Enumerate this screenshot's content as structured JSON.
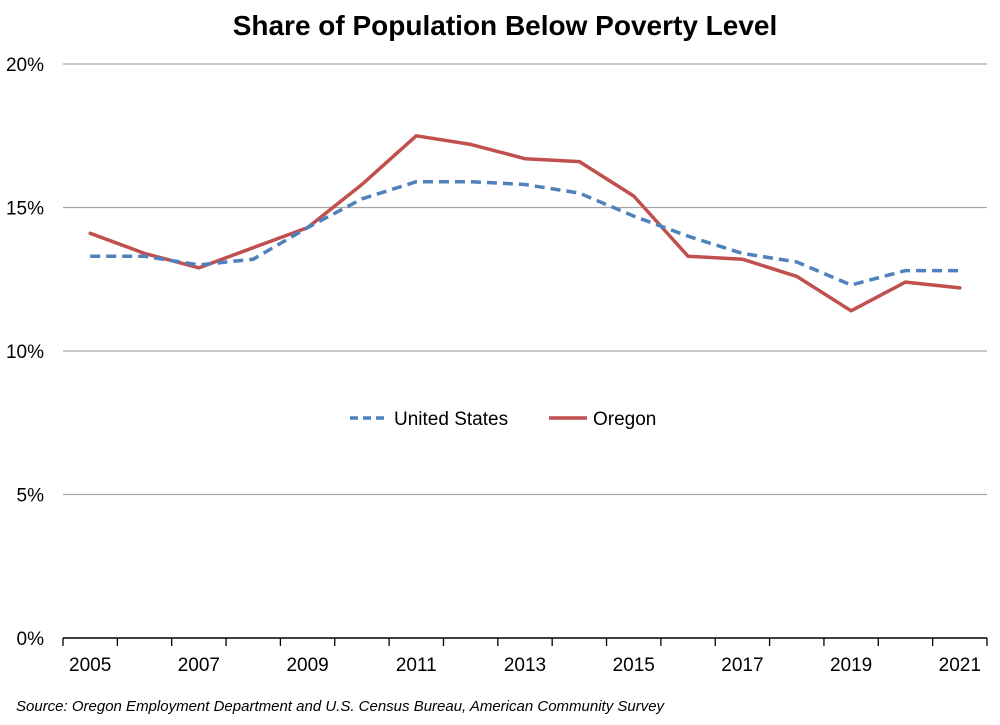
{
  "chart_data": {
    "type": "line",
    "title": "Share of Population Below Poverty Level",
    "xlabel": "",
    "ylabel": "",
    "x": [
      2005,
      2006,
      2007,
      2008,
      2009,
      2010,
      2011,
      2012,
      2013,
      2014,
      2015,
      2016,
      2017,
      2018,
      2019,
      2020,
      2021
    ],
    "x_tick_labels": [
      "2005",
      "2007",
      "2009",
      "2011",
      "2013",
      "2015",
      "2017",
      "2019",
      "2021"
    ],
    "y_tick_labels": [
      "0%",
      "5%",
      "10%",
      "15%",
      "20%"
    ],
    "y_ticks": [
      0,
      5,
      10,
      15,
      20
    ],
    "ylim": [
      0,
      20
    ],
    "grid": true,
    "legend_position": "center",
    "series": [
      {
        "name": "United States",
        "style": "dashed",
        "color": "#4f81bd",
        "values": [
          13.3,
          13.3,
          13.0,
          13.2,
          14.3,
          15.3,
          15.9,
          15.9,
          15.8,
          15.5,
          14.7,
          14.0,
          13.4,
          13.1,
          12.3,
          12.8,
          12.8
        ]
      },
      {
        "name": "Oregon",
        "style": "solid",
        "color": "#c0504d",
        "values": [
          14.1,
          13.4,
          12.9,
          13.6,
          14.3,
          15.8,
          17.5,
          17.2,
          16.7,
          16.6,
          15.4,
          13.3,
          13.2,
          12.6,
          11.4,
          12.4,
          12.2
        ]
      }
    ]
  },
  "source": "Source: Oregon Employment Department and U.S. Census Bureau, American Community Survey"
}
